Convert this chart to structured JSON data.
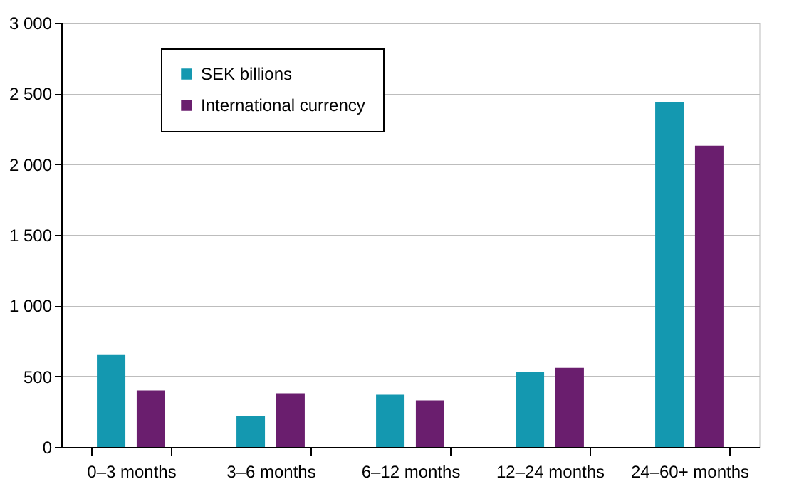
{
  "chart_data": {
    "type": "bar",
    "categories": [
      "0–3 months",
      "3–6 months",
      "6–12 months",
      "12–24 months",
      "24–60+ months"
    ],
    "series": [
      {
        "name": "SEK billions",
        "color": "#1498b0",
        "values": [
          650,
          220,
          370,
          530,
          2440
        ]
      },
      {
        "name": "International currency",
        "color": "#6a1e6e",
        "values": [
          400,
          380,
          330,
          560,
          2130
        ]
      }
    ],
    "ylim": [
      0,
      3000
    ],
    "yticks": [
      0,
      500,
      {
        "value": 1000,
        "label": "1 000"
      },
      {
        "value": 1500,
        "label": "1 500"
      },
      {
        "value": 2000,
        "label": "2 000"
      },
      {
        "value": 2500,
        "label": "2 500"
      },
      {
        "value": 3000,
        "label": "3 000"
      }
    ],
    "grid": "y",
    "legend": "top left"
  }
}
